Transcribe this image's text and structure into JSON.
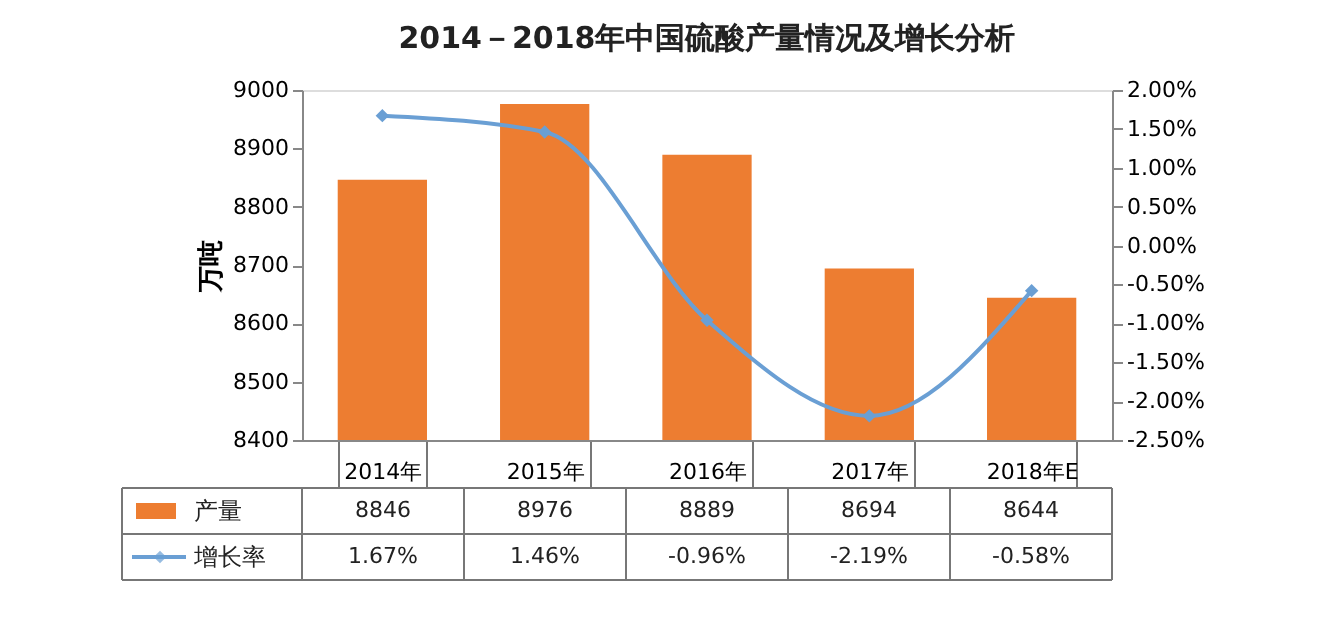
{
  "chart_data": {
    "type": "bar",
    "title": "2014－2018年中国硫酸产量情况及增长分析",
    "ylabel": "万吨",
    "categories": [
      "2014年",
      "2015年",
      "2016年",
      "2017年",
      "2018年E"
    ],
    "series": [
      {
        "name": "产量",
        "color": "#ed7d31",
        "values": [
          8846,
          8976,
          8889,
          8694,
          8644
        ],
        "value_labels": [
          "8846",
          "8976",
          "8889",
          "8694",
          "8644"
        ]
      },
      {
        "name": "增长率",
        "type": "line",
        "axis": "y2",
        "color": "#6a9fd4",
        "marker": "diamond",
        "values": [
          1.67,
          1.46,
          -0.96,
          -2.19,
          -0.58
        ],
        "value_labels": [
          "1.67%",
          "1.46%",
          "-0.96%",
          "-2.19%",
          "-0.58%"
        ]
      }
    ],
    "ylim": [
      8400,
      9000
    ],
    "yticks": [
      8400,
      8500,
      8600,
      8700,
      8800,
      8900,
      9000
    ],
    "y2lim": [
      -2.5,
      2.0
    ],
    "y2ticks": [
      {
        "value": -2.5,
        "label": "-2.50%"
      },
      {
        "value": -2.0,
        "label": "-2.00%"
      },
      {
        "value": -1.5,
        "label": "-1.50%"
      },
      {
        "value": -1.0,
        "label": "-1.00%"
      },
      {
        "value": -0.5,
        "label": "-0.50%"
      },
      {
        "value": 0,
        "label": "0.00%"
      },
      {
        "value": 0.5,
        "label": "0.50%"
      },
      {
        "value": 1.0,
        "label": "1.00%"
      },
      {
        "value": 1.5,
        "label": "1.50%"
      },
      {
        "value": 2.0,
        "label": "2.00%"
      }
    ],
    "grid": false,
    "legend": "bottom"
  }
}
